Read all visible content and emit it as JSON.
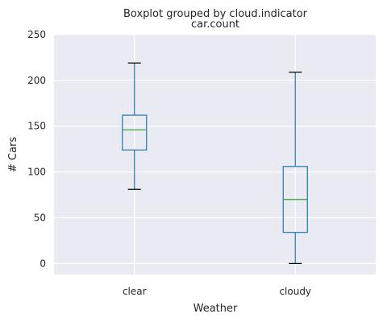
{
  "chart_data": {
    "type": "box",
    "suptitle": "Boxplot grouped by cloud.indicator",
    "title": "car.count",
    "xlabel": "Weather",
    "ylabel": "# Cars",
    "ylim": [
      -12,
      250
    ],
    "yticks": [
      0,
      50,
      100,
      150,
      200,
      250
    ],
    "grid": true,
    "categories": [
      "clear",
      "cloudy"
    ],
    "boxes": [
      {
        "name": "clear",
        "whisker_low": 81,
        "q1": 124,
        "median": 146,
        "q3": 162,
        "whisker_high": 219
      },
      {
        "name": "cloudy",
        "whisker_low": 0,
        "q1": 34,
        "median": 70,
        "q3": 106,
        "whisker_high": 209
      }
    ],
    "colors": {
      "box": "#1f77b4",
      "median": "#2ca02c",
      "whisker_cap": "#000000",
      "background": "#eaeaf2",
      "grid": "#ffffff"
    }
  }
}
